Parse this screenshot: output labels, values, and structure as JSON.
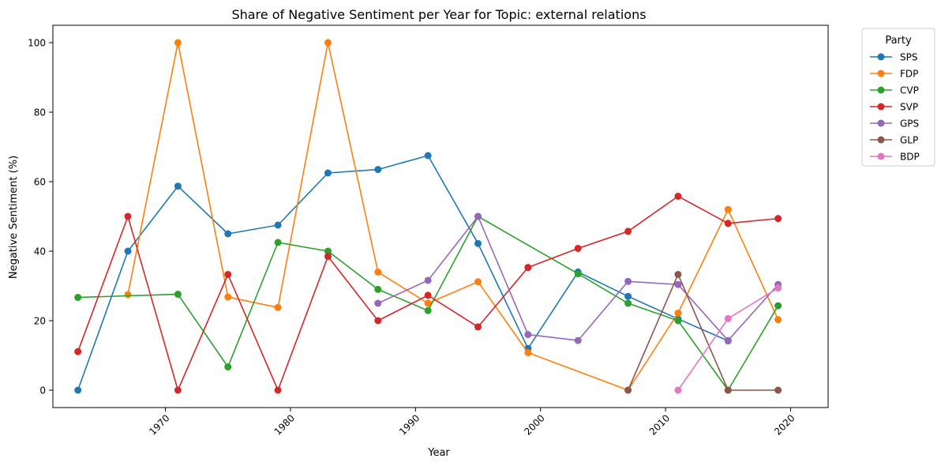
{
  "chart_data": {
    "type": "line",
    "title": "Share of Negative Sentiment per Year for Topic: external relations",
    "xlabel": "Year",
    "ylabel": "Negative Sentiment (%)",
    "xlim": [
      1961,
      2023
    ],
    "ylim": [
      -5,
      105
    ],
    "xticks": [
      1970,
      1980,
      1990,
      2000,
      2010,
      2020
    ],
    "yticks": [
      0,
      20,
      40,
      60,
      80,
      100
    ],
    "grid": false,
    "legend": {
      "title": "Party",
      "placement": "outside-top-right"
    },
    "series": [
      {
        "name": "SPS",
        "color": "#1f77b4",
        "x": [
          1963,
          1967,
          1971,
          1975,
          1979,
          1983,
          1987,
          1991,
          1995,
          1999,
          2003,
          2007,
          2011,
          2015
        ],
        "y": [
          0,
          40,
          58.7,
          45,
          47.5,
          62.5,
          63.5,
          67.5,
          42.2,
          12,
          34,
          27,
          20.5,
          14.2
        ]
      },
      {
        "name": "FDP",
        "color": "#ff7f0e",
        "x": [
          1967,
          1971,
          1975,
          1979,
          1983,
          1987,
          1991,
          1995,
          1999,
          2007,
          2011,
          2015,
          2019
        ],
        "y": [
          27.5,
          100,
          26.8,
          23.8,
          100,
          34,
          25,
          31.2,
          10.8,
          0,
          22.2,
          52,
          20.3
        ]
      },
      {
        "name": "CVP",
        "color": "#2ca02c",
        "x": [
          1963,
          1971,
          1975,
          1979,
          1983,
          1987,
          1991,
          1995,
          2003,
          2007,
          2011,
          2015,
          2019
        ],
        "y": [
          26.7,
          27.6,
          6.7,
          42.5,
          40,
          29,
          22.9,
          50,
          33.5,
          25,
          20,
          0,
          24.3
        ]
      },
      {
        "name": "SVP",
        "color": "#d62728",
        "x": [
          1963,
          1967,
          1971,
          1975,
          1979,
          1983,
          1987,
          1991,
          1995,
          1999,
          2003,
          2007,
          2011,
          2015,
          2019
        ],
        "y": [
          11.1,
          50,
          0,
          33.3,
          0,
          38.5,
          20,
          27.3,
          18.2,
          35.3,
          40.8,
          45.7,
          55.8,
          48,
          49.4
        ]
      },
      {
        "name": "GPS",
        "color": "#9467bd",
        "x": [
          1987,
          1991,
          1995,
          1999,
          2003,
          2007,
          2011,
          2015,
          2019
        ],
        "y": [
          25,
          31.6,
          50,
          16,
          14.3,
          31.3,
          30.4,
          14.3,
          30.4
        ]
      },
      {
        "name": "GLP",
        "color": "#8c564b",
        "x": [
          2007,
          2011,
          2015,
          2019
        ],
        "y": [
          0,
          33.3,
          0,
          0
        ]
      },
      {
        "name": "BDP",
        "color": "#e377c2",
        "x": [
          2011,
          2015,
          2019
        ],
        "y": [
          0,
          20.6,
          29.4
        ]
      }
    ]
  }
}
